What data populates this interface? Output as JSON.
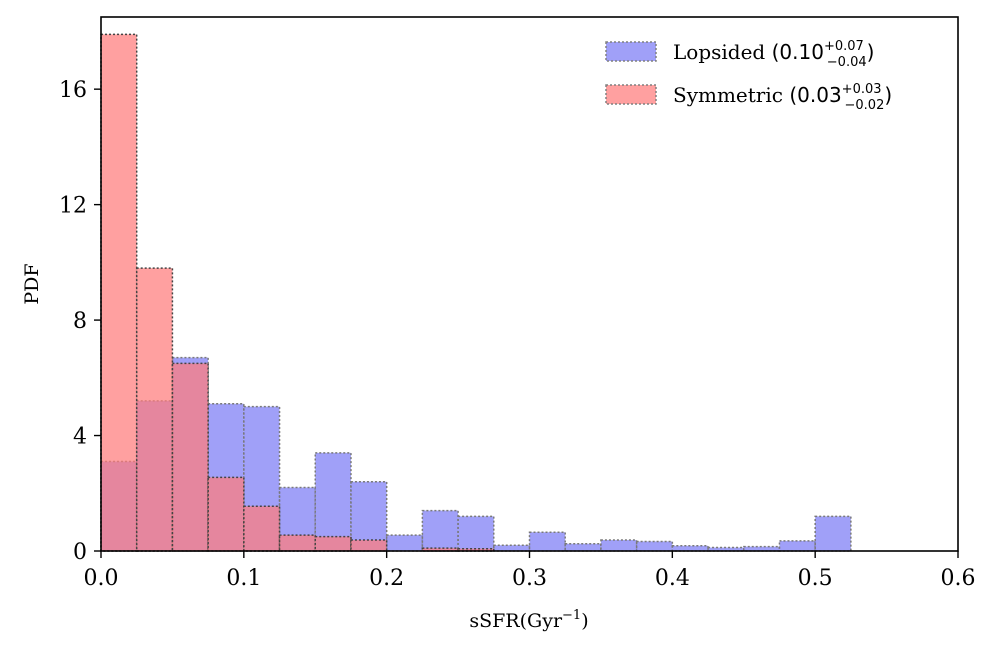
{
  "chart_data": {
    "type": "bar",
    "xlabel": "sSFR(Gyr",
    "xlabel_sup": "−1",
    "xlabel_close": ")",
    "ylabel": "PDF",
    "xlim": [
      0.0,
      0.6
    ],
    "ylim": [
      0,
      18.5
    ],
    "xticks": [
      0.0,
      0.1,
      0.2,
      0.3,
      0.4,
      0.5,
      0.6
    ],
    "xtick_labels": [
      "0.0",
      "0.1",
      "0.2",
      "0.3",
      "0.4",
      "0.5",
      "0.6"
    ],
    "yticks": [
      0,
      4,
      8,
      12,
      16
    ],
    "ytick_labels": [
      "0",
      "4",
      "8",
      "12",
      "16"
    ],
    "grid": false,
    "legend_position": "top-right",
    "bin_edges": [
      0.0,
      0.025,
      0.05,
      0.075,
      0.1,
      0.125,
      0.15,
      0.175,
      0.2,
      0.225,
      0.25,
      0.275,
      0.3,
      0.325,
      0.35,
      0.375,
      0.4,
      0.425,
      0.45,
      0.475,
      0.5,
      0.525
    ],
    "series": [
      {
        "name": "Lopsided",
        "legend_value": "0.10",
        "legend_sup": "+0.07",
        "legend_sub": "−0.04",
        "color": "#7b7bf5",
        "values": [
          3.1,
          5.2,
          6.7,
          5.1,
          5.0,
          2.2,
          3.4,
          2.4,
          0.55,
          1.4,
          1.2,
          0.2,
          0.65,
          0.25,
          0.38,
          0.33,
          0.18,
          0.12,
          0.15,
          0.35,
          1.2
        ]
      },
      {
        "name": "Symmetric",
        "legend_value": "0.03",
        "legend_sup": "+0.03",
        "legend_sub": "−0.02",
        "color": "#ff7b7b",
        "values": [
          17.9,
          9.8,
          6.5,
          2.55,
          1.55,
          0.55,
          0.5,
          0.38,
          0.0,
          0.1,
          0.08,
          0.0,
          0.0,
          0.0,
          0.0,
          0.0,
          0.0,
          0.0,
          0.0,
          0.0,
          0.0
        ]
      }
    ]
  }
}
